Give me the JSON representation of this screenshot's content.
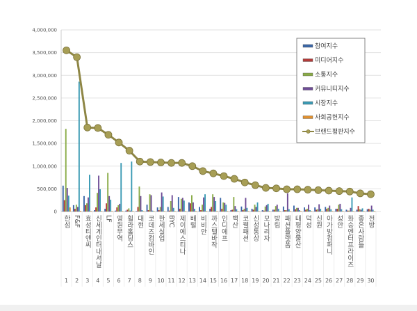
{
  "chart_data": {
    "type": "bar",
    "title": "",
    "xlabel": "",
    "ylabel": "",
    "ylim": [
      0,
      4000000
    ],
    "yticks": [
      "0",
      "500,000",
      "1,000,000",
      "1,500,000",
      "2,000,000",
      "2,500,000",
      "3,000,000",
      "3,500,000",
      "4,000,000"
    ],
    "grid": true,
    "legend_position": "top-right",
    "categories": [
      "한섬",
      "F&F",
      "효성티앤씨",
      "신세계인터내셔날",
      "LF",
      "영원무역",
      "휠라홀딩스",
      "대현",
      "코데즈컴바인",
      "한세실업",
      "BYC",
      "제이에스티나",
      "배럴",
      "비비안",
      "까스텔바작",
      "인디에프",
      "백산",
      "코웰패션",
      "신성통상",
      "모나리자",
      "방림",
      "패션플랫폼",
      "태평양물산",
      "덕성",
      "신원",
      "아가방컴퍼니",
      "성안",
      "화승엔터프라이즈",
      "좋은사람들",
      "전방"
    ],
    "category_numbers": [
      "1",
      "2",
      "3",
      "4",
      "5",
      "6",
      "7",
      "8",
      "9",
      "10",
      "11",
      "12",
      "13",
      "14",
      "15",
      "16",
      "17",
      "18",
      "19",
      "20",
      "21",
      "22",
      "23",
      "24",
      "25",
      "26",
      "27",
      "28",
      "29",
      "30"
    ],
    "series": [
      {
        "name": "참여지수",
        "color": "#3a66a7",
        "values": [
          570000,
          140000,
          340000,
          30000,
          60000,
          20000,
          20000,
          10000,
          150000,
          90000,
          100000,
          320000,
          200000,
          100000,
          60000,
          300000,
          30000,
          110000,
          60000,
          30000,
          40000,
          110000,
          130000,
          90000,
          90000,
          100000,
          60000,
          40000,
          40000,
          50000
        ]
      },
      {
        "name": "미디어지수",
        "color": "#b23c3a",
        "values": [
          250000,
          60000,
          140000,
          90000,
          180000,
          90000,
          40000,
          100000,
          30000,
          30000,
          20000,
          60000,
          180000,
          30000,
          100000,
          60000,
          40000,
          30000,
          40000,
          20000,
          40000,
          30000,
          50000,
          40000,
          40000,
          60000,
          60000,
          20000,
          120000,
          60000
        ]
      },
      {
        "name": "소통지수",
        "color": "#8aac48",
        "values": [
          1820000,
          150000,
          180000,
          410000,
          850000,
          140000,
          70000,
          550000,
          380000,
          100000,
          230000,
          280000,
          360000,
          150000,
          380000,
          200000,
          320000,
          60000,
          150000,
          110000,
          120000,
          30000,
          80000,
          60000,
          50000,
          80000,
          150000,
          20000,
          50000,
          40000
        ]
      },
      {
        "name": "커뮤니티지수",
        "color": "#6e4c96",
        "values": [
          520000,
          100000,
          310000,
          790000,
          340000,
          170000,
          20000,
          340000,
          360000,
          420000,
          360000,
          300000,
          200000,
          310000,
          320000,
          190000,
          120000,
          300000,
          100000,
          140000,
          150000,
          400000,
          80000,
          150000,
          160000,
          130000,
          170000,
          80000,
          40000,
          130000
        ]
      },
      {
        "name": "시장지수",
        "color": "#3a9ab4",
        "values": [
          350000,
          2860000,
          810000,
          490000,
          260000,
          1070000,
          1100000,
          30000,
          20000,
          330000,
          80000,
          240000,
          60000,
          380000,
          230000,
          150000,
          50000,
          80000,
          200000,
          170000,
          60000,
          50000,
          30000,
          30000,
          60000,
          50000,
          50000,
          310000,
          70000,
          40000
        ]
      },
      {
        "name": "사회공헌지수",
        "color": "#e0902f",
        "values": [
          90000,
          15000,
          10000,
          10000,
          10000,
          10000,
          10000,
          10000,
          10000,
          10000,
          10000,
          10000,
          10000,
          10000,
          10000,
          10000,
          10000,
          10000,
          10000,
          10000,
          10000,
          10000,
          10000,
          10000,
          10000,
          10000,
          10000,
          10000,
          10000,
          10000
        ]
      }
    ],
    "line_series": {
      "name": "브랜드평판지수",
      "color": "#8e8645",
      "values": [
        3550000,
        3400000,
        1850000,
        1840000,
        1690000,
        1520000,
        1340000,
        1100000,
        1090000,
        1080000,
        1070000,
        1070000,
        1000000,
        890000,
        840000,
        780000,
        720000,
        640000,
        580000,
        520000,
        510000,
        490000,
        490000,
        480000,
        470000,
        460000,
        450000,
        440000,
        400000,
        380000
      ]
    }
  }
}
